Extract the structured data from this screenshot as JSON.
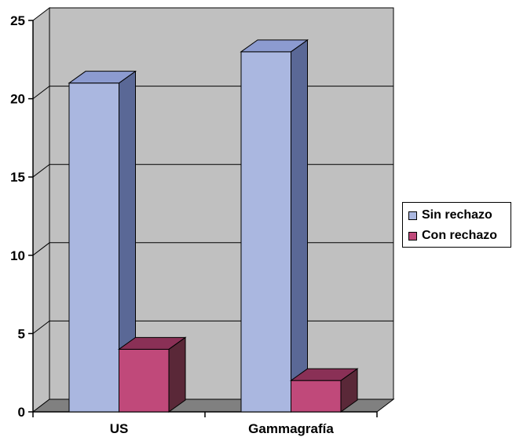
{
  "chart_data": {
    "type": "bar",
    "categories": [
      "US",
      "Gammagrafía"
    ],
    "series": [
      {
        "name": "Sin rechazo",
        "values": [
          21,
          23
        ],
        "color": "#aab7e0",
        "side_color": "#5a6896",
        "top_color": "#8c9bd0"
      },
      {
        "name": "Con rechazo",
        "values": [
          4,
          2
        ],
        "color": "#c0497a",
        "side_color": "#5a2838",
        "top_color": "#8a3056"
      }
    ],
    "yticks": [
      "0",
      "5",
      "10",
      "15",
      "20",
      "25"
    ],
    "ylim": [
      0,
      25
    ],
    "grid": true,
    "legend_position": "right",
    "style": "3d-column",
    "wall_color": "#c0c0c0",
    "floor_color": "#808080"
  }
}
